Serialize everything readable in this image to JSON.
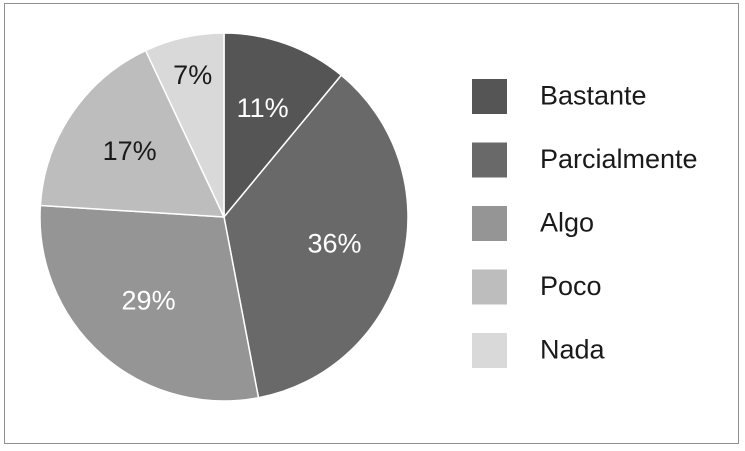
{
  "chart_data": {
    "type": "pie",
    "slices": [
      {
        "label": "Bastante",
        "value": 11,
        "value_label": "11%",
        "color": "#555555",
        "label_color": "#ffffff"
      },
      {
        "label": "Parcialmente",
        "value": 36,
        "value_label": "36%",
        "color": "#696969",
        "label_color": "#ffffff"
      },
      {
        "label": "Algo",
        "value": 29,
        "value_label": "29%",
        "color": "#959595",
        "label_color": "#ffffff"
      },
      {
        "label": "Poco",
        "value": 17,
        "value_label": "17%",
        "color": "#bdbdbd",
        "label_color": "#1a1a1a"
      },
      {
        "label": "Nada",
        "value": 7,
        "value_label": "7%",
        "color": "#d9d9d9",
        "label_color": "#1a1a1a"
      }
    ],
    "start_angle": "12 o'clock",
    "direction": "clockwise",
    "legend_position": "right",
    "title": ""
  }
}
